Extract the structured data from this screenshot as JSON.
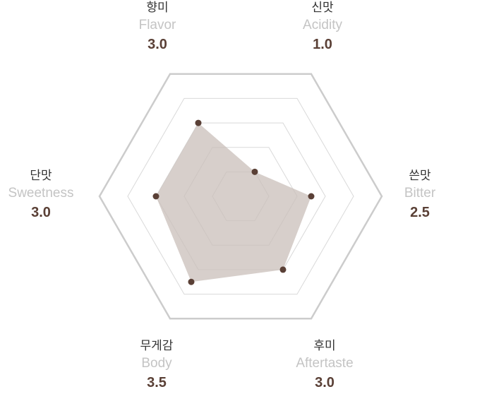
{
  "chart_data": {
    "type": "radar",
    "max": 5,
    "rings": 5,
    "axes": [
      {
        "ko": "향미",
        "en": "Flavor",
        "value": "3.0"
      },
      {
        "ko": "신맛",
        "en": "Acidity",
        "value": "1.0"
      },
      {
        "ko": "쓴맛",
        "en": "Bitter",
        "value": "2.5"
      },
      {
        "ko": "후미",
        "en": "Aftertaste",
        "value": "3.0"
      },
      {
        "ko": "무게감",
        "en": "Body",
        "value": "3.5"
      },
      {
        "ko": "단맛",
        "en": "Sweetness",
        "value": "3.0"
      }
    ],
    "colors": {
      "fill": "#c9bfb9",
      "point": "#5a4036",
      "grid": "#d9d9d9",
      "outer": "#cccccc",
      "value_text": "#5a4036"
    }
  }
}
